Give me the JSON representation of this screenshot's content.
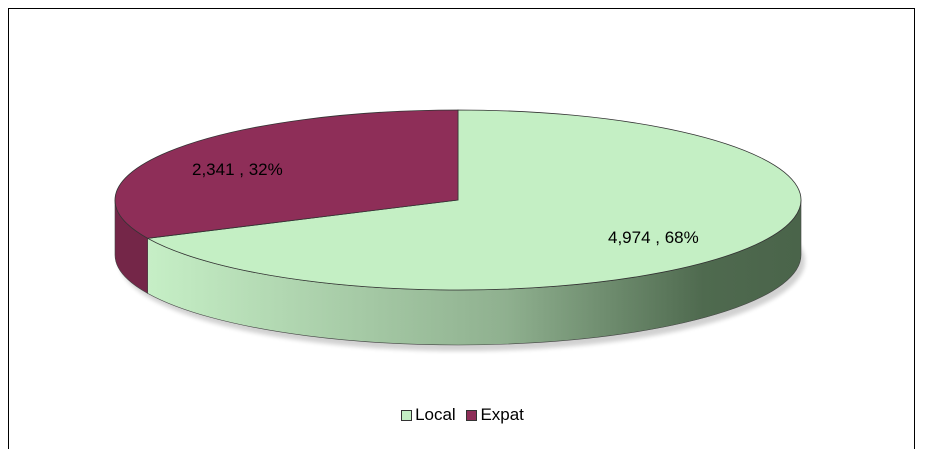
{
  "chart_data": {
    "type": "pie",
    "style": "3d",
    "categories": [
      "Local",
      "Expat"
    ],
    "values": [
      4974,
      2341
    ],
    "percentages": [
      68,
      32
    ],
    "data_labels": [
      "4,974 , 68%",
      "2,341 , 32%"
    ],
    "colors": [
      "#c4efc4",
      "#8e2e58"
    ],
    "legend": {
      "position": "bottom",
      "entries": [
        "Local",
        "Expat"
      ]
    }
  }
}
